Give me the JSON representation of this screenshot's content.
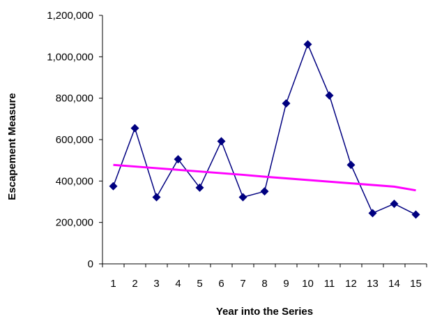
{
  "chart_data": {
    "type": "line",
    "title": "",
    "xlabel": "Year into the Series",
    "ylabel": "Escapement Measure",
    "categories": [
      "1",
      "2",
      "3",
      "4",
      "5",
      "6",
      "7",
      "8",
      "9",
      "10",
      "11",
      "12",
      "13",
      "14",
      "15"
    ],
    "ylim": [
      0,
      1200000
    ],
    "y_ticks": [
      0,
      200000,
      400000,
      600000,
      800000,
      1000000,
      1200000
    ],
    "y_tick_labels": [
      "0",
      "200,000",
      "400,000",
      "600,000",
      "800,000",
      "1,000,000",
      "1,200,000"
    ],
    "grid": false,
    "legend": "none",
    "series": [
      {
        "values": [
          375000,
          655000,
          322000,
          505000,
          368000,
          592000,
          322000,
          350000,
          775000,
          1060000,
          813000,
          478000,
          245000,
          290000,
          238000
        ],
        "color": "#000080",
        "marker": "diamond"
      },
      {
        "values": [
          478000,
          470000,
          462000,
          454000,
          446000,
          438000,
          430000,
          421000,
          413000,
          405000,
          397000,
          389000,
          381000,
          373000,
          355000
        ],
        "color": "#ff00ff",
        "marker": "none",
        "trend": true
      }
    ]
  }
}
